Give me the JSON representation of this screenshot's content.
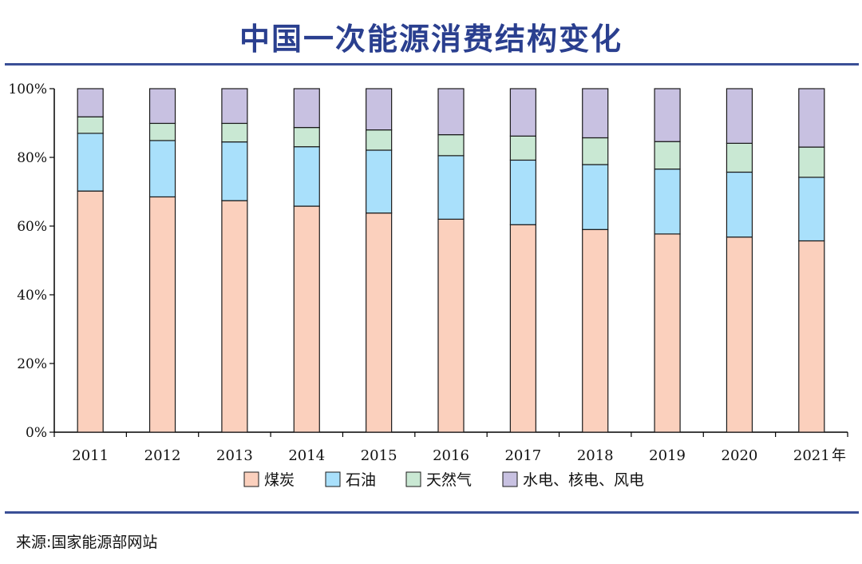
{
  "title": "中国一次能源消费结构变化",
  "source": "来源:国家能源部网站",
  "x_unit": "年",
  "colors": {
    "煤炭": "#fbd0bd",
    "石油": "#a9e0fb",
    "天然气": "#c9e8d3",
    "水电、核电、风电": "#c8c1e1",
    "rule": "#3a4f96",
    "title": "#2a3f8f"
  },
  "chart_data": {
    "type": "bar",
    "stacked": true,
    "categories": [
      "2011",
      "2012",
      "2013",
      "2014",
      "2015",
      "2016",
      "2017",
      "2018",
      "2019",
      "2020",
      "2021"
    ],
    "series": [
      {
        "name": "煤炭",
        "values": [
          70.2,
          68.5,
          67.4,
          65.8,
          63.8,
          62.0,
          60.4,
          59.0,
          57.7,
          56.8,
          55.7
        ]
      },
      {
        "name": "石油",
        "values": [
          16.8,
          16.4,
          17.1,
          17.3,
          18.3,
          18.5,
          18.8,
          18.9,
          18.9,
          18.9,
          18.5
        ]
      },
      {
        "name": "天然气",
        "values": [
          4.8,
          5.0,
          5.4,
          5.6,
          5.9,
          6.1,
          7.0,
          7.8,
          8.0,
          8.4,
          8.8
        ]
      },
      {
        "name": "水电、核电、风电",
        "values": [
          8.2,
          10.1,
          10.1,
          11.3,
          12.0,
          13.4,
          13.8,
          14.3,
          15.4,
          15.9,
          17.0
        ]
      }
    ],
    "ylim": [
      0,
      100
    ],
    "yticks": [
      "0%",
      "20%",
      "40%",
      "60%",
      "80%",
      "100%"
    ],
    "grid": false,
    "legend_position": "bottom"
  }
}
